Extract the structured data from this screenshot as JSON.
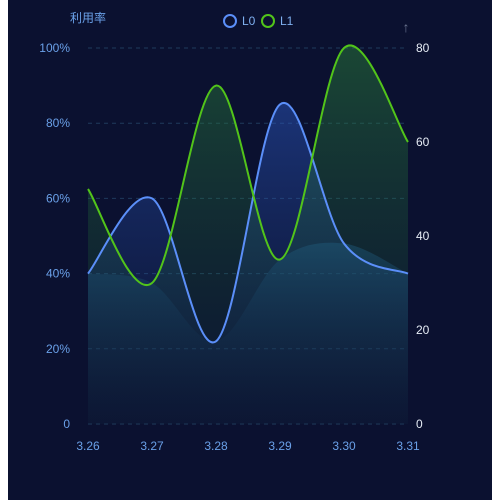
{
  "chart_data": {
    "type": "line",
    "smooth": true,
    "area_fill": true,
    "categories": [
      "3.26",
      "3.27",
      "3.28",
      "3.29",
      "3.30",
      "3.31"
    ],
    "ylabel_left": "利用率",
    "ylabel_right": "",
    "yticks_left": [
      "0",
      "20%",
      "40%",
      "60%",
      "80%",
      "100%"
    ],
    "yticks_right": [
      "0",
      "20",
      "40",
      "60",
      "80"
    ],
    "ylim_left": [
      0,
      100
    ],
    "ylim_right": [
      0,
      80
    ],
    "grid": "horizontal-dashed",
    "legend_position": "top-center",
    "series": [
      {
        "name": "L0",
        "axis": "left",
        "color": "#5b8ff9",
        "values": [
          40,
          60,
          22,
          85,
          48,
          40
        ]
      },
      {
        "name": "L1",
        "axis": "right",
        "color": "#52c41a",
        "values": [
          50,
          30,
          72,
          35,
          80,
          60
        ]
      }
    ]
  },
  "toolbar": {
    "icon": "restore-arrow-icon",
    "glyph": "↑"
  }
}
